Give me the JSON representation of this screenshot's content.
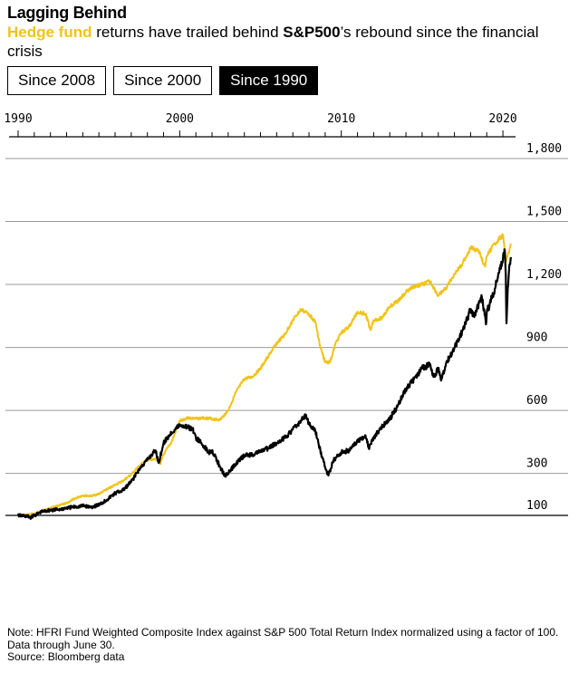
{
  "header": {
    "title": "Lagging Behind",
    "subtitle_highlight": "Hedge fund",
    "subtitle_middle": " returns have trailed behind ",
    "subtitle_bold": "S&P500",
    "subtitle_end": "’s rebound since the financial crisis"
  },
  "tabs": [
    {
      "label": "Since 2008",
      "active": false
    },
    {
      "label": "Since 2000",
      "active": false
    },
    {
      "label": "Since 1990",
      "active": true
    }
  ],
  "colors": {
    "hedge_fund": "#f0c419",
    "sp500": "#000000",
    "grid": "#999999",
    "active_tab_bg": "#000000"
  },
  "chart_data": {
    "type": "line",
    "title": "",
    "xlabel": "",
    "ylabel": "",
    "x_ticks": [
      "1990",
      "2000",
      "2010",
      "2020"
    ],
    "xlim": [
      1990,
      2020.5
    ],
    "y_ticks": [
      100,
      300,
      600,
      900,
      1200,
      1500,
      1800
    ],
    "y_tick_labels": [
      "100",
      "300",
      "600",
      "900",
      "1,200",
      "1,500",
      "1,800"
    ],
    "ylim": [
      100,
      1800
    ],
    "grid": true,
    "legend": "in subtitle",
    "series": [
      {
        "name": "Hedge fund",
        "color": "#f0c419",
        "points": [
          [
            1990.0,
            100
          ],
          [
            1990.5,
            102
          ],
          [
            1991.0,
            108
          ],
          [
            1991.5,
            122
          ],
          [
            1992.0,
            135
          ],
          [
            1992.5,
            146
          ],
          [
            1993.0,
            158
          ],
          [
            1993.5,
            180
          ],
          [
            1994.0,
            195
          ],
          [
            1994.5,
            192
          ],
          [
            1995.0,
            202
          ],
          [
            1995.5,
            225
          ],
          [
            1996.0,
            245
          ],
          [
            1996.5,
            265
          ],
          [
            1997.0,
            295
          ],
          [
            1997.5,
            335
          ],
          [
            1998.0,
            365
          ],
          [
            1998.5,
            370
          ],
          [
            1998.8,
            345
          ],
          [
            1999.0,
            390
          ],
          [
            1999.5,
            450
          ],
          [
            2000.0,
            550
          ],
          [
            2000.5,
            565
          ],
          [
            2001.0,
            560
          ],
          [
            2001.5,
            565
          ],
          [
            2002.0,
            560
          ],
          [
            2002.5,
            555
          ],
          [
            2003.0,
            600
          ],
          [
            2003.5,
            690
          ],
          [
            2004.0,
            750
          ],
          [
            2004.5,
            760
          ],
          [
            2005.0,
            800
          ],
          [
            2005.5,
            860
          ],
          [
            2006.0,
            920
          ],
          [
            2006.5,
            960
          ],
          [
            2007.0,
            1030
          ],
          [
            2007.5,
            1080
          ],
          [
            2008.0,
            1060
          ],
          [
            2008.4,
            1020
          ],
          [
            2008.7,
            900
          ],
          [
            2009.0,
            830
          ],
          [
            2009.3,
            830
          ],
          [
            2009.7,
            930
          ],
          [
            2010.0,
            970
          ],
          [
            2010.5,
            1000
          ],
          [
            2011.0,
            1070
          ],
          [
            2011.5,
            1060
          ],
          [
            2011.8,
            985
          ],
          [
            2012.0,
            1030
          ],
          [
            2012.5,
            1040
          ],
          [
            2013.0,
            1095
          ],
          [
            2013.5,
            1120
          ],
          [
            2014.0,
            1165
          ],
          [
            2014.5,
            1190
          ],
          [
            2015.0,
            1200
          ],
          [
            2015.5,
            1215
          ],
          [
            2016.0,
            1145
          ],
          [
            2016.5,
            1185
          ],
          [
            2017.0,
            1250
          ],
          [
            2017.5,
            1300
          ],
          [
            2018.0,
            1375
          ],
          [
            2018.5,
            1360
          ],
          [
            2018.9,
            1285
          ],
          [
            2019.0,
            1335
          ],
          [
            2019.5,
            1395
          ],
          [
            2020.0,
            1435
          ],
          [
            2020.2,
            1310
          ],
          [
            2020.35,
            1350
          ],
          [
            2020.5,
            1395
          ]
        ]
      },
      {
        "name": "S&P500",
        "color": "#000000",
        "points": [
          [
            1990.0,
            100
          ],
          [
            1990.4,
            97
          ],
          [
            1990.8,
            90
          ],
          [
            1991.0,
            100
          ],
          [
            1991.5,
            118
          ],
          [
            1992.0,
            125
          ],
          [
            1992.5,
            128
          ],
          [
            1993.0,
            135
          ],
          [
            1993.5,
            140
          ],
          [
            1994.0,
            145
          ],
          [
            1994.5,
            140
          ],
          [
            1995.0,
            150
          ],
          [
            1995.5,
            175
          ],
          [
            1996.0,
            205
          ],
          [
            1996.5,
            220
          ],
          [
            1997.0,
            260
          ],
          [
            1997.5,
            320
          ],
          [
            1998.0,
            365
          ],
          [
            1998.5,
            410
          ],
          [
            1998.7,
            350
          ],
          [
            1999.0,
            445
          ],
          [
            1999.5,
            495
          ],
          [
            2000.0,
            530
          ],
          [
            2000.5,
            520
          ],
          [
            2000.8,
            510
          ],
          [
            2001.0,
            470
          ],
          [
            2001.5,
            430
          ],
          [
            2001.8,
            400
          ],
          [
            2002.0,
            410
          ],
          [
            2002.5,
            330
          ],
          [
            2002.8,
            290
          ],
          [
            2003.0,
            300
          ],
          [
            2003.5,
            350
          ],
          [
            2004.0,
            385
          ],
          [
            2004.5,
            390
          ],
          [
            2005.0,
            405
          ],
          [
            2005.5,
            420
          ],
          [
            2006.0,
            445
          ],
          [
            2006.5,
            470
          ],
          [
            2007.0,
            510
          ],
          [
            2007.5,
            550
          ],
          [
            2007.8,
            580
          ],
          [
            2008.0,
            535
          ],
          [
            2008.4,
            500
          ],
          [
            2008.8,
            380
          ],
          [
            2009.0,
            330
          ],
          [
            2009.2,
            290
          ],
          [
            2009.5,
            360
          ],
          [
            2010.0,
            400
          ],
          [
            2010.5,
            410
          ],
          [
            2011.0,
            455
          ],
          [
            2011.5,
            480
          ],
          [
            2011.7,
            420
          ],
          [
            2012.0,
            470
          ],
          [
            2012.5,
            520
          ],
          [
            2013.0,
            560
          ],
          [
            2013.5,
            625
          ],
          [
            2014.0,
            700
          ],
          [
            2014.5,
            750
          ],
          [
            2015.0,
            800
          ],
          [
            2015.5,
            820
          ],
          [
            2015.7,
            760
          ],
          [
            2016.0,
            795
          ],
          [
            2016.2,
            750
          ],
          [
            2016.5,
            830
          ],
          [
            2017.0,
            900
          ],
          [
            2017.5,
            980
          ],
          [
            2018.0,
            1080
          ],
          [
            2018.2,
            1050
          ],
          [
            2018.7,
            1140
          ],
          [
            2018.95,
            1010
          ],
          [
            2019.0,
            1065
          ],
          [
            2019.5,
            1180
          ],
          [
            2020.0,
            1320
          ],
          [
            2020.12,
            1360
          ],
          [
            2020.18,
            1240
          ],
          [
            2020.22,
            1015
          ],
          [
            2020.3,
            1180
          ],
          [
            2020.4,
            1290
          ],
          [
            2020.5,
            1330
          ]
        ]
      }
    ]
  },
  "footer": {
    "note": "Note: HFRI Fund Weighted Composite Index against S&P 500 Total Return Index normalized using a factor of 100. Data through June 30.",
    "source": "Source: Bloomberg data"
  }
}
